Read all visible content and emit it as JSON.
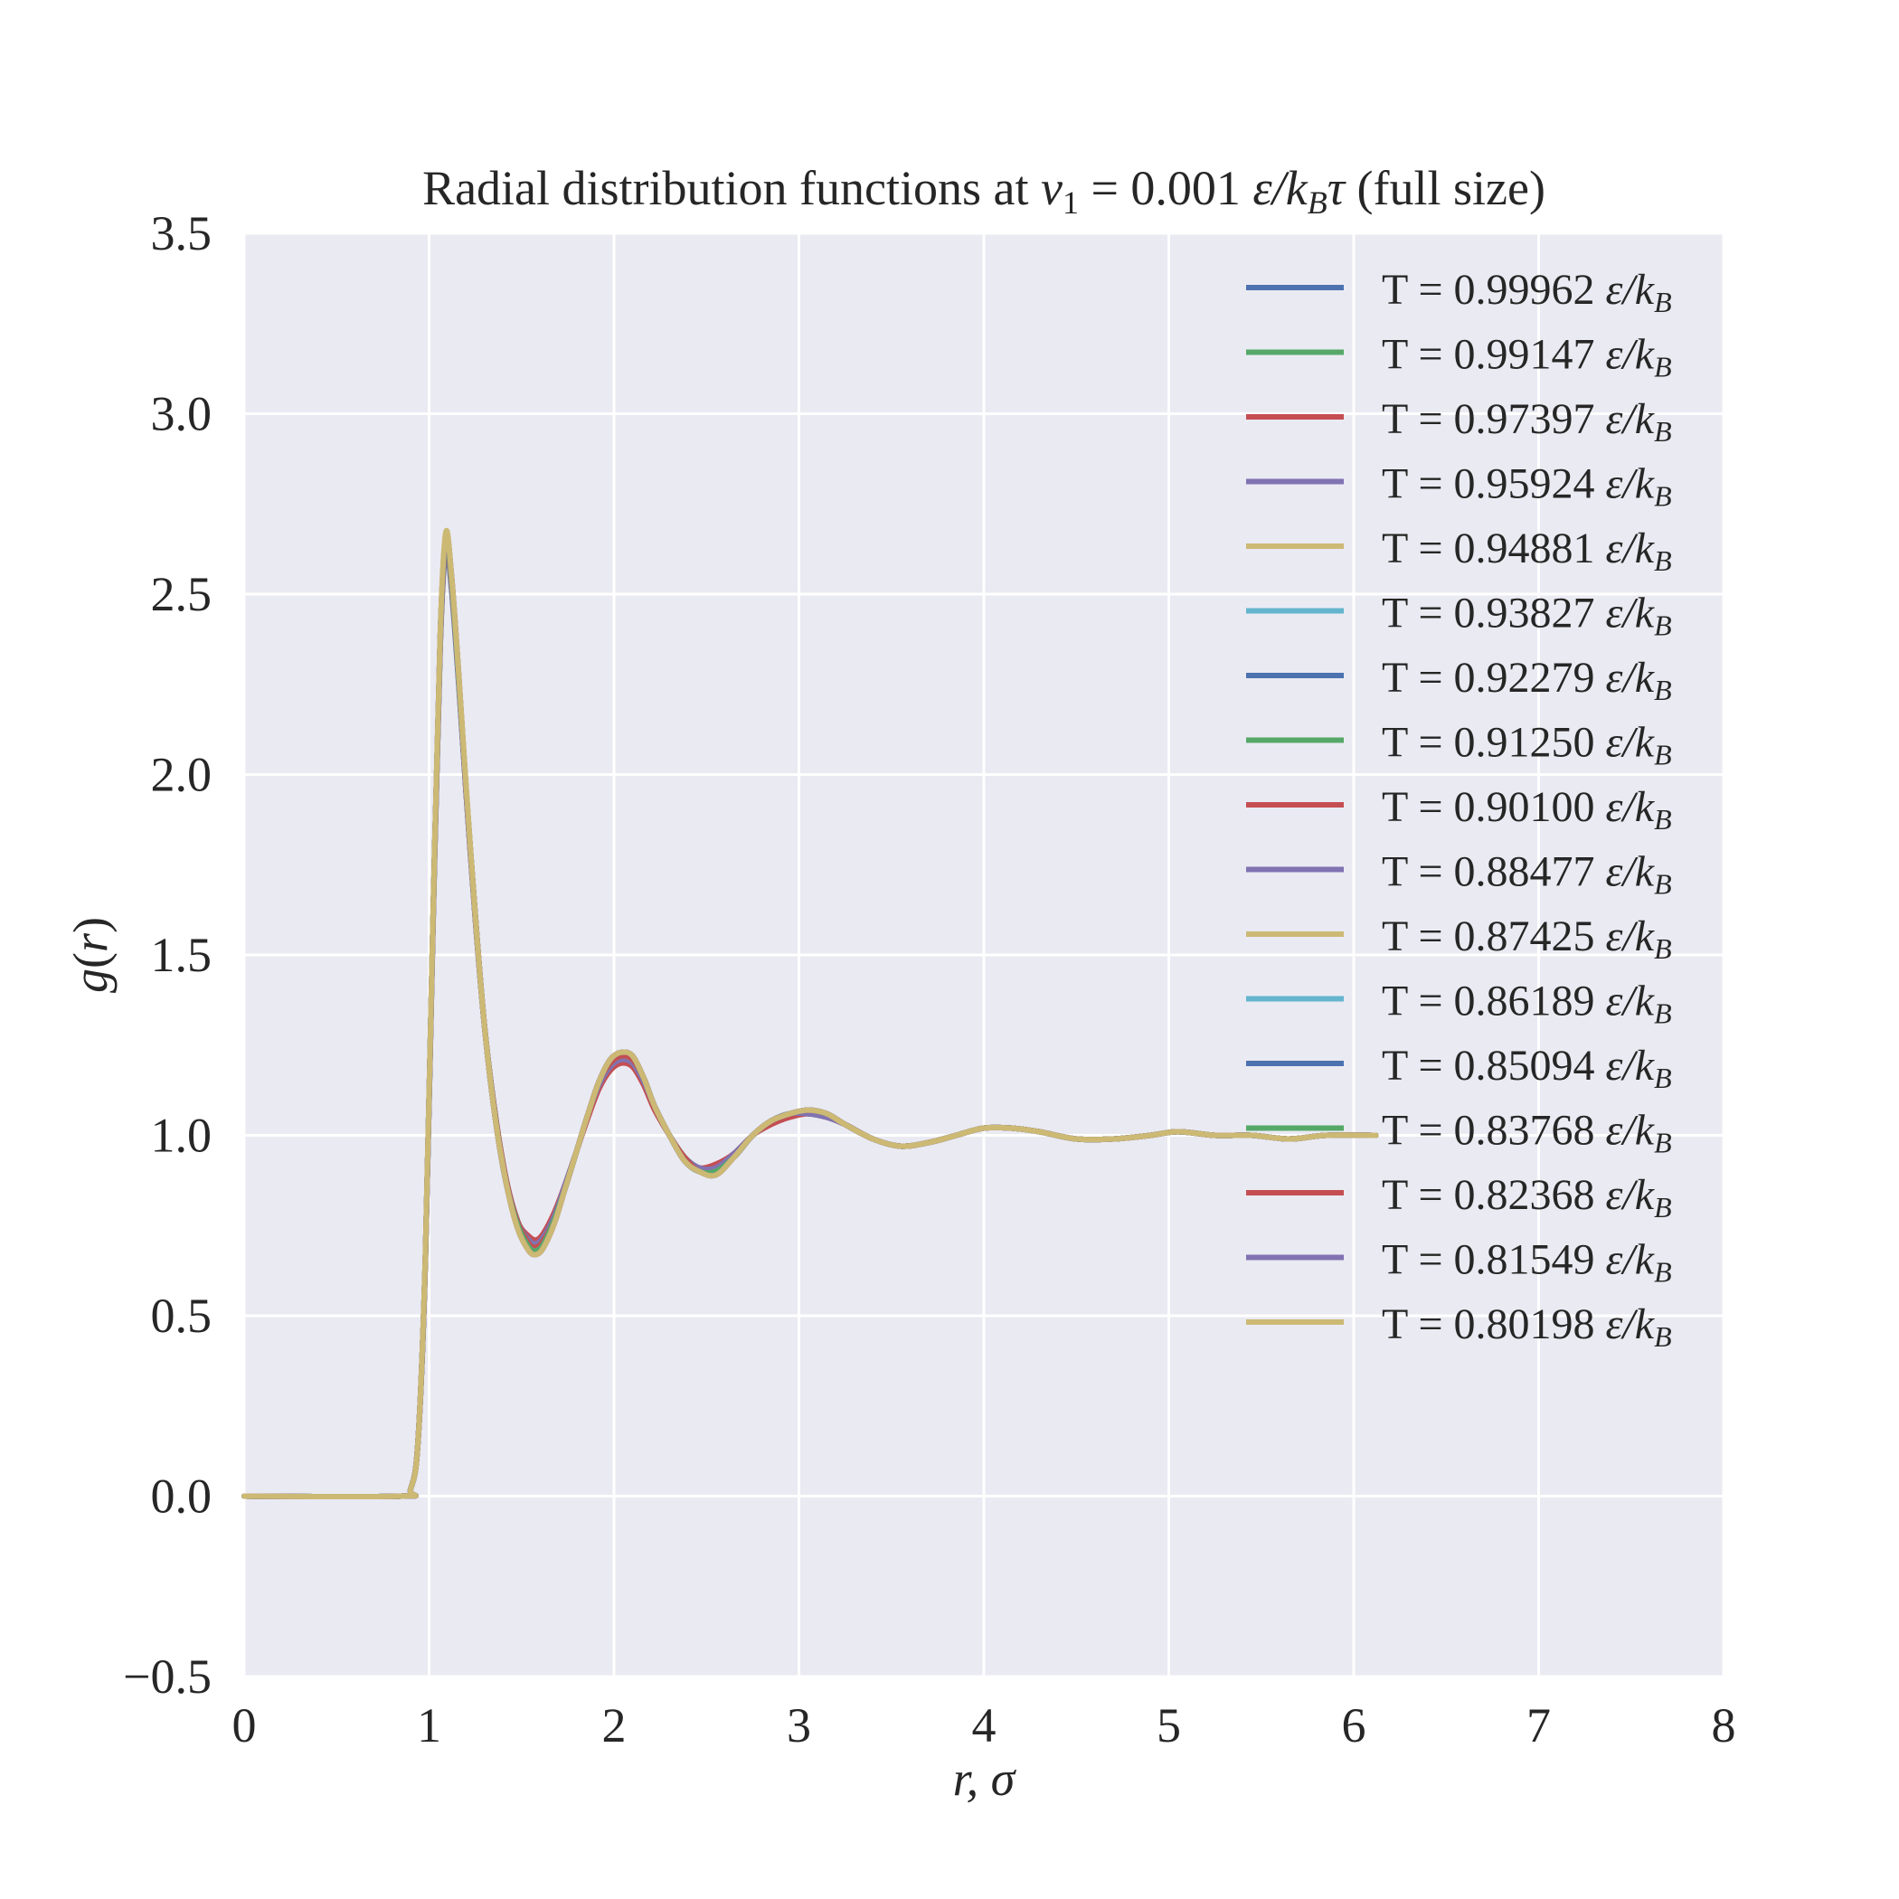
{
  "chart_data": {
    "type": "line",
    "title": {
      "prefix": "Radial distribution functions at ",
      "var": "v",
      "var_sub": "1",
      "equals": " = ",
      "value": "0.001",
      "unit_eps": "ε",
      "unit_k": "/k",
      "unit_k_sub": "B",
      "unit_tau": "τ",
      "suffix": " (full size)"
    },
    "xlabel": "r, σ",
    "ylabel": {
      "f": "g",
      "open": "(",
      "r": "r",
      "close": ")"
    },
    "xlim": [
      0,
      8
    ],
    "ylim": [
      -0.5,
      3.5
    ],
    "xticks": [
      0,
      1,
      2,
      3,
      4,
      5,
      6,
      7,
      8
    ],
    "yticks": [
      -0.5,
      0.0,
      0.5,
      1.0,
      1.5,
      2.0,
      2.5,
      3.0,
      3.5
    ],
    "xtick_labels": [
      "0",
      "1",
      "2",
      "3",
      "4",
      "5",
      "6",
      "7",
      "8"
    ],
    "ytick_labels": [
      "−0.5",
      "0.0",
      "0.5",
      "1.0",
      "1.5",
      "2.0",
      "2.5",
      "3.0",
      "3.5"
    ],
    "grid": true,
    "legend_position": "top-right",
    "legend_unit": {
      "eps": "ε",
      "k": "/k",
      "sub": "B"
    },
    "colors": {
      "background": "#eaeaf2",
      "grid": "#ffffff",
      "palette": [
        "#4c72b0",
        "#55a868",
        "#c44e52",
        "#8172b2",
        "#ccb974",
        "#64b5cd"
      ]
    },
    "x": [
      0.0,
      0.85,
      0.9,
      0.94,
      0.98,
      1.02,
      1.06,
      1.09,
      1.12,
      1.16,
      1.2,
      1.25,
      1.3,
      1.36,
      1.42,
      1.48,
      1.54,
      1.58,
      1.62,
      1.68,
      1.74,
      1.8,
      1.86,
      1.92,
      1.98,
      2.04,
      2.1,
      2.16,
      2.22,
      2.3,
      2.38,
      2.46,
      2.55,
      2.65,
      2.75,
      2.85,
      2.95,
      3.05,
      3.15,
      3.25,
      3.4,
      3.55,
      3.7,
      3.85,
      4.0,
      4.15,
      4.3,
      4.5,
      4.7,
      4.9,
      5.05,
      5.25,
      5.45,
      5.65,
      5.85,
      6.12
    ],
    "series": [
      {
        "name": "T = 0.99962",
        "y": [
          0.0,
          0.0,
          0.02,
          0.15,
          0.65,
          1.55,
          2.35,
          2.62,
          2.52,
          2.25,
          1.95,
          1.6,
          1.3,
          1.05,
          0.87,
          0.76,
          0.71,
          0.7,
          0.72,
          0.78,
          0.87,
          0.96,
          1.06,
          1.14,
          1.19,
          1.21,
          1.2,
          1.15,
          1.08,
          1.0,
          0.94,
          0.91,
          0.91,
          0.95,
          1.0,
          1.04,
          1.06,
          1.06,
          1.05,
          1.03,
          0.99,
          0.97,
          0.98,
          1.0,
          1.02,
          1.02,
          1.01,
          0.99,
          0.99,
          1.0,
          1.01,
          1.0,
          1.0,
          0.99,
          1.0,
          1.0
        ]
      },
      {
        "name": "T = 0.99147",
        "y": [
          0.0,
          0.0,
          0.02,
          0.15,
          0.65,
          1.56,
          2.36,
          2.63,
          2.53,
          2.26,
          1.95,
          1.6,
          1.3,
          1.05,
          0.87,
          0.76,
          0.71,
          0.7,
          0.72,
          0.78,
          0.87,
          0.96,
          1.06,
          1.14,
          1.19,
          1.21,
          1.2,
          1.15,
          1.08,
          1.0,
          0.94,
          0.91,
          0.91,
          0.95,
          1.0,
          1.04,
          1.06,
          1.06,
          1.05,
          1.03,
          0.99,
          0.97,
          0.98,
          1.0,
          1.02,
          1.02,
          1.01,
          0.99,
          0.99,
          1.0,
          1.01,
          1.0,
          1.0,
          0.99,
          1.0,
          1.0
        ]
      },
      {
        "name": "T = 0.97397",
        "y": [
          0.0,
          0.0,
          0.02,
          0.15,
          0.65,
          1.56,
          2.36,
          2.63,
          2.53,
          2.26,
          1.95,
          1.6,
          1.3,
          1.05,
          0.87,
          0.76,
          0.72,
          0.71,
          0.73,
          0.79,
          0.87,
          0.96,
          1.05,
          1.13,
          1.18,
          1.2,
          1.19,
          1.14,
          1.07,
          1.0,
          0.94,
          0.91,
          0.92,
          0.95,
          1.0,
          1.03,
          1.05,
          1.06,
          1.05,
          1.03,
          0.99,
          0.97,
          0.98,
          1.0,
          1.02,
          1.02,
          1.01,
          0.99,
          0.99,
          1.0,
          1.01,
          1.0,
          1.0,
          0.99,
          1.0,
          1.0
        ]
      },
      {
        "name": "T = 0.95924",
        "y": [
          0.0,
          0.0,
          0.02,
          0.15,
          0.65,
          1.56,
          2.36,
          2.63,
          2.53,
          2.26,
          1.95,
          1.6,
          1.3,
          1.05,
          0.87,
          0.76,
          0.71,
          0.7,
          0.72,
          0.78,
          0.87,
          0.96,
          1.06,
          1.14,
          1.19,
          1.21,
          1.2,
          1.15,
          1.08,
          1.0,
          0.94,
          0.91,
          0.91,
          0.95,
          1.0,
          1.04,
          1.06,
          1.06,
          1.05,
          1.03,
          0.99,
          0.97,
          0.98,
          1.0,
          1.02,
          1.02,
          1.01,
          0.99,
          0.99,
          1.0,
          1.01,
          1.0,
          1.0,
          0.99,
          1.0,
          1.0
        ]
      },
      {
        "name": "T = 0.94881",
        "y": [
          0.0,
          0.0,
          0.02,
          0.15,
          0.66,
          1.57,
          2.37,
          2.64,
          2.54,
          2.27,
          1.96,
          1.61,
          1.3,
          1.05,
          0.87,
          0.76,
          0.7,
          0.69,
          0.71,
          0.77,
          0.86,
          0.96,
          1.06,
          1.15,
          1.2,
          1.22,
          1.21,
          1.16,
          1.08,
          1.0,
          0.94,
          0.9,
          0.9,
          0.94,
          1.0,
          1.04,
          1.06,
          1.07,
          1.06,
          1.03,
          0.99,
          0.97,
          0.98,
          1.0,
          1.02,
          1.02,
          1.01,
          0.99,
          0.99,
          1.0,
          1.01,
          1.0,
          1.0,
          0.99,
          1.0,
          1.0
        ]
      },
      {
        "name": "T = 0.93827",
        "y": [
          0.0,
          0.0,
          0.02,
          0.15,
          0.66,
          1.57,
          2.37,
          2.64,
          2.54,
          2.27,
          1.96,
          1.61,
          1.3,
          1.05,
          0.87,
          0.76,
          0.7,
          0.69,
          0.71,
          0.77,
          0.86,
          0.96,
          1.06,
          1.15,
          1.2,
          1.22,
          1.21,
          1.16,
          1.08,
          1.0,
          0.94,
          0.9,
          0.9,
          0.94,
          1.0,
          1.04,
          1.06,
          1.07,
          1.06,
          1.03,
          0.99,
          0.97,
          0.98,
          1.0,
          1.02,
          1.02,
          1.01,
          0.99,
          0.99,
          1.0,
          1.01,
          1.0,
          1.0,
          0.99,
          1.0,
          1.0
        ]
      },
      {
        "name": "T = 0.92279",
        "y": [
          0.0,
          0.0,
          0.02,
          0.15,
          0.66,
          1.57,
          2.37,
          2.64,
          2.54,
          2.27,
          1.96,
          1.61,
          1.3,
          1.05,
          0.87,
          0.76,
          0.7,
          0.69,
          0.71,
          0.77,
          0.86,
          0.96,
          1.06,
          1.15,
          1.2,
          1.22,
          1.21,
          1.16,
          1.08,
          1.0,
          0.94,
          0.9,
          0.9,
          0.94,
          1.0,
          1.04,
          1.06,
          1.07,
          1.06,
          1.03,
          0.99,
          0.97,
          0.98,
          1.0,
          1.02,
          1.02,
          1.01,
          0.99,
          0.99,
          1.0,
          1.01,
          1.0,
          1.0,
          0.99,
          1.0,
          1.0
        ]
      },
      {
        "name": "T = 0.91250",
        "y": [
          0.0,
          0.0,
          0.02,
          0.15,
          0.66,
          1.57,
          2.37,
          2.64,
          2.54,
          2.27,
          1.96,
          1.61,
          1.3,
          1.05,
          0.87,
          0.76,
          0.7,
          0.69,
          0.71,
          0.77,
          0.86,
          0.96,
          1.06,
          1.15,
          1.2,
          1.22,
          1.21,
          1.16,
          1.08,
          1.0,
          0.94,
          0.9,
          0.9,
          0.94,
          1.0,
          1.04,
          1.06,
          1.07,
          1.06,
          1.03,
          0.99,
          0.97,
          0.98,
          1.0,
          1.02,
          1.02,
          1.01,
          0.99,
          0.99,
          1.0,
          1.01,
          1.0,
          1.0,
          0.99,
          1.0,
          1.0
        ]
      },
      {
        "name": "T = 0.90100",
        "y": [
          0.0,
          0.0,
          0.02,
          0.15,
          0.66,
          1.57,
          2.37,
          2.64,
          2.54,
          2.27,
          1.96,
          1.61,
          1.3,
          1.05,
          0.87,
          0.76,
          0.7,
          0.69,
          0.71,
          0.77,
          0.86,
          0.96,
          1.06,
          1.15,
          1.2,
          1.22,
          1.21,
          1.16,
          1.08,
          1.0,
          0.94,
          0.9,
          0.9,
          0.94,
          1.0,
          1.04,
          1.06,
          1.07,
          1.06,
          1.03,
          0.99,
          0.97,
          0.98,
          1.0,
          1.02,
          1.02,
          1.01,
          0.99,
          0.99,
          1.0,
          1.01,
          1.0,
          1.0,
          0.99,
          1.0,
          1.0
        ]
      },
      {
        "name": "T = 0.88477",
        "y": [
          0.0,
          0.0,
          0.02,
          0.15,
          0.66,
          1.57,
          2.38,
          2.65,
          2.55,
          2.27,
          1.96,
          1.61,
          1.3,
          1.04,
          0.86,
          0.75,
          0.69,
          0.68,
          0.7,
          0.77,
          0.86,
          0.96,
          1.06,
          1.15,
          1.21,
          1.23,
          1.22,
          1.16,
          1.08,
          1.0,
          0.93,
          0.9,
          0.9,
          0.94,
          1.0,
          1.04,
          1.06,
          1.07,
          1.06,
          1.03,
          0.99,
          0.97,
          0.98,
          1.0,
          1.02,
          1.02,
          1.01,
          0.99,
          0.99,
          1.0,
          1.01,
          1.0,
          1.0,
          0.99,
          1.0,
          1.0
        ]
      },
      {
        "name": "T = 0.87425",
        "y": [
          0.0,
          0.0,
          0.02,
          0.15,
          0.66,
          1.57,
          2.38,
          2.65,
          2.55,
          2.27,
          1.96,
          1.61,
          1.3,
          1.04,
          0.86,
          0.75,
          0.69,
          0.68,
          0.7,
          0.77,
          0.86,
          0.96,
          1.06,
          1.15,
          1.21,
          1.23,
          1.22,
          1.16,
          1.08,
          1.0,
          0.93,
          0.9,
          0.9,
          0.94,
          1.0,
          1.04,
          1.06,
          1.07,
          1.06,
          1.03,
          0.99,
          0.97,
          0.98,
          1.0,
          1.02,
          1.02,
          1.01,
          0.99,
          0.99,
          1.0,
          1.01,
          1.0,
          1.0,
          0.99,
          1.0,
          1.0
        ]
      },
      {
        "name": "T = 0.86189",
        "y": [
          0.0,
          0.0,
          0.02,
          0.15,
          0.66,
          1.57,
          2.38,
          2.65,
          2.55,
          2.27,
          1.96,
          1.61,
          1.3,
          1.04,
          0.86,
          0.75,
          0.69,
          0.68,
          0.7,
          0.77,
          0.86,
          0.96,
          1.06,
          1.15,
          1.21,
          1.23,
          1.22,
          1.16,
          1.08,
          1.0,
          0.93,
          0.9,
          0.9,
          0.94,
          1.0,
          1.04,
          1.06,
          1.07,
          1.06,
          1.03,
          0.99,
          0.97,
          0.98,
          1.0,
          1.02,
          1.02,
          1.01,
          0.99,
          0.99,
          1.0,
          1.01,
          1.0,
          1.0,
          0.99,
          1.0,
          1.0
        ]
      },
      {
        "name": "T = 0.85094",
        "y": [
          0.0,
          0.0,
          0.02,
          0.15,
          0.66,
          1.57,
          2.38,
          2.65,
          2.55,
          2.27,
          1.96,
          1.61,
          1.3,
          1.04,
          0.86,
          0.75,
          0.69,
          0.68,
          0.7,
          0.77,
          0.86,
          0.96,
          1.06,
          1.15,
          1.21,
          1.23,
          1.22,
          1.16,
          1.08,
          1.0,
          0.93,
          0.9,
          0.9,
          0.94,
          1.0,
          1.04,
          1.06,
          1.07,
          1.06,
          1.03,
          0.99,
          0.97,
          0.98,
          1.0,
          1.02,
          1.02,
          1.01,
          0.99,
          0.99,
          1.0,
          1.01,
          1.0,
          1.0,
          0.99,
          1.0,
          1.0
        ]
      },
      {
        "name": "T = 0.83768",
        "y": [
          0.0,
          0.0,
          0.02,
          0.15,
          0.66,
          1.57,
          2.38,
          2.65,
          2.55,
          2.27,
          1.96,
          1.61,
          1.3,
          1.04,
          0.86,
          0.75,
          0.69,
          0.68,
          0.7,
          0.77,
          0.86,
          0.96,
          1.06,
          1.15,
          1.21,
          1.23,
          1.22,
          1.16,
          1.08,
          1.0,
          0.93,
          0.9,
          0.9,
          0.94,
          1.0,
          1.04,
          1.06,
          1.07,
          1.06,
          1.03,
          0.99,
          0.97,
          0.98,
          1.0,
          1.02,
          1.02,
          1.01,
          0.99,
          0.99,
          1.0,
          1.01,
          1.0,
          1.0,
          0.99,
          1.0,
          1.0
        ]
      },
      {
        "name": "T = 0.82368",
        "y": [
          0.0,
          0.0,
          0.02,
          0.15,
          0.66,
          1.57,
          2.38,
          2.66,
          2.56,
          2.28,
          1.96,
          1.61,
          1.3,
          1.04,
          0.86,
          0.74,
          0.68,
          0.67,
          0.69,
          0.76,
          0.86,
          0.96,
          1.06,
          1.15,
          1.21,
          1.23,
          1.22,
          1.16,
          1.08,
          1.0,
          0.93,
          0.9,
          0.89,
          0.94,
          1.0,
          1.04,
          1.06,
          1.07,
          1.06,
          1.03,
          0.99,
          0.97,
          0.98,
          1.0,
          1.02,
          1.02,
          1.01,
          0.99,
          0.99,
          1.0,
          1.01,
          1.0,
          1.0,
          0.99,
          1.0,
          1.0
        ]
      },
      {
        "name": "T = 0.81549",
        "y": [
          0.0,
          0.0,
          0.02,
          0.15,
          0.66,
          1.57,
          2.38,
          2.66,
          2.56,
          2.28,
          1.96,
          1.61,
          1.3,
          1.04,
          0.86,
          0.74,
          0.68,
          0.67,
          0.69,
          0.76,
          0.86,
          0.96,
          1.06,
          1.15,
          1.21,
          1.23,
          1.22,
          1.16,
          1.08,
          1.0,
          0.93,
          0.9,
          0.89,
          0.94,
          1.0,
          1.04,
          1.06,
          1.07,
          1.06,
          1.03,
          0.99,
          0.97,
          0.98,
          1.0,
          1.02,
          1.02,
          1.01,
          0.99,
          0.99,
          1.0,
          1.01,
          1.0,
          1.0,
          0.99,
          1.0,
          1.0
        ]
      },
      {
        "name": "T = 0.80198",
        "y": [
          0.0,
          0.0,
          0.02,
          0.15,
          0.67,
          1.58,
          2.39,
          2.67,
          2.56,
          2.28,
          1.97,
          1.61,
          1.3,
          1.04,
          0.86,
          0.74,
          0.68,
          0.67,
          0.69,
          0.76,
          0.86,
          0.96,
          1.06,
          1.15,
          1.21,
          1.23,
          1.22,
          1.16,
          1.08,
          1.0,
          0.93,
          0.9,
          0.89,
          0.94,
          1.0,
          1.04,
          1.06,
          1.07,
          1.06,
          1.03,
          0.99,
          0.97,
          0.98,
          1.0,
          1.02,
          1.02,
          1.01,
          0.99,
          0.99,
          1.0,
          1.01,
          1.0,
          1.0,
          0.99,
          1.0,
          1.0
        ]
      }
    ]
  }
}
